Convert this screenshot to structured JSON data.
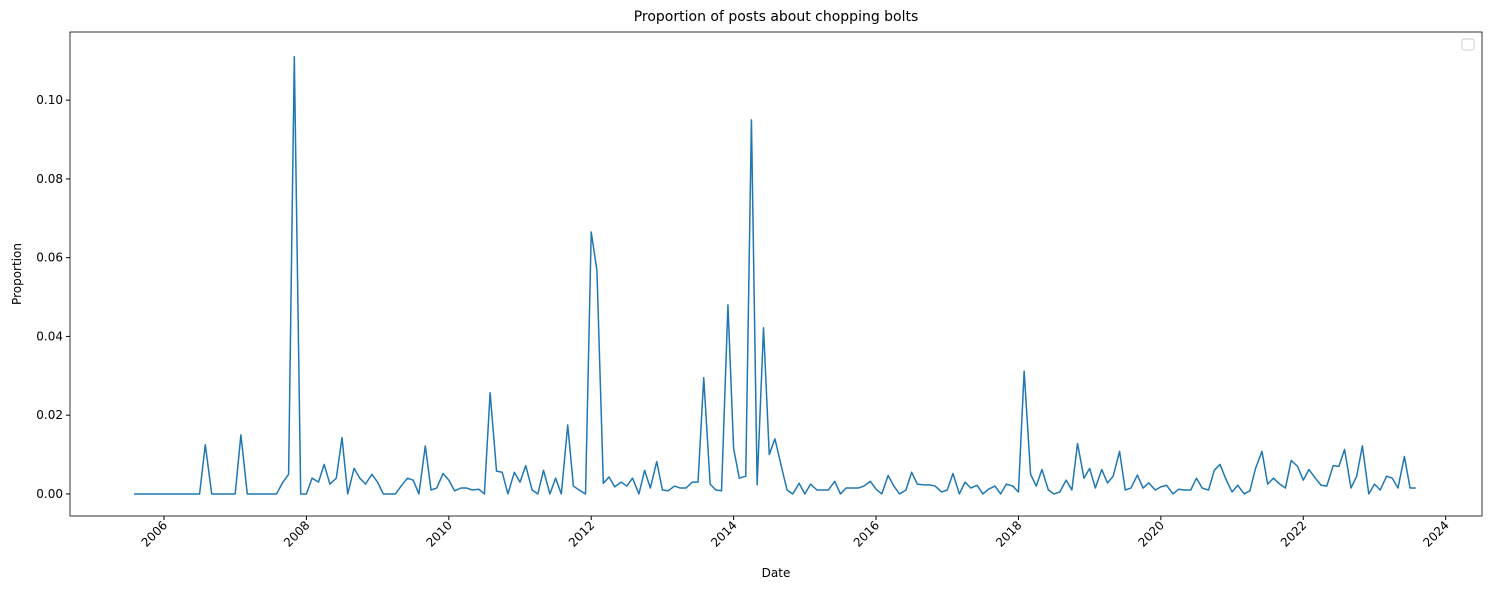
{
  "chart_data": {
    "type": "line",
    "title": "Proportion of posts about chopping bolts",
    "x_label": "Date",
    "y_label": "Proportion",
    "x": [
      2005.58,
      2005.67,
      2005.75,
      2005.83,
      2005.92,
      2006.0,
      2006.08,
      2006.17,
      2006.25,
      2006.33,
      2006.42,
      2006.5,
      2006.58,
      2006.67,
      2006.75,
      2006.83,
      2006.92,
      2007.0,
      2007.08,
      2007.17,
      2007.25,
      2007.33,
      2007.42,
      2007.5,
      2007.58,
      2007.67,
      2007.75,
      2007.83,
      2007.92,
      2008.0,
      2008.08,
      2008.17,
      2008.25,
      2008.33,
      2008.42,
      2008.5,
      2008.58,
      2008.67,
      2008.75,
      2008.83,
      2008.92,
      2009.0,
      2009.08,
      2009.17,
      2009.25,
      2009.33,
      2009.42,
      2009.5,
      2009.58,
      2009.67,
      2009.75,
      2009.83,
      2009.92,
      2010.0,
      2010.08,
      2010.17,
      2010.25,
      2010.33,
      2010.42,
      2010.5,
      2010.58,
      2010.67,
      2010.75,
      2010.83,
      2010.92,
      2011.0,
      2011.08,
      2011.17,
      2011.25,
      2011.33,
      2011.42,
      2011.5,
      2011.58,
      2011.67,
      2011.75,
      2011.83,
      2011.92,
      2012.0,
      2012.08,
      2012.17,
      2012.25,
      2012.33,
      2012.42,
      2012.5,
      2012.58,
      2012.67,
      2012.75,
      2012.83,
      2012.92,
      2013.0,
      2013.08,
      2013.17,
      2013.25,
      2013.33,
      2013.42,
      2013.5,
      2013.58,
      2013.67,
      2013.75,
      2013.83,
      2013.92,
      2014.0,
      2014.08,
      2014.17,
      2014.25,
      2014.33,
      2014.42,
      2014.5,
      2014.58,
      2014.67,
      2014.75,
      2014.83,
      2014.92,
      2015.0,
      2015.08,
      2015.17,
      2015.25,
      2015.33,
      2015.42,
      2015.5,
      2015.58,
      2015.67,
      2015.75,
      2015.83,
      2015.92,
      2016.0,
      2016.08,
      2016.17,
      2016.25,
      2016.33,
      2016.42,
      2016.5,
      2016.58,
      2016.67,
      2016.75,
      2016.83,
      2016.92,
      2017.0,
      2017.08,
      2017.17,
      2017.25,
      2017.33,
      2017.42,
      2017.5,
      2017.58,
      2017.67,
      2017.75,
      2017.83,
      2017.92,
      2018.0,
      2018.08,
      2018.17,
      2018.25,
      2018.33,
      2018.42,
      2018.5,
      2018.58,
      2018.67,
      2018.75,
      2018.83,
      2018.92,
      2019.0,
      2019.08,
      2019.17,
      2019.25,
      2019.33,
      2019.42,
      2019.5,
      2019.58,
      2019.67,
      2019.75,
      2019.83,
      2019.92,
      2020.0,
      2020.08,
      2020.17,
      2020.25,
      2020.33,
      2020.42,
      2020.5,
      2020.58,
      2020.67,
      2020.75,
      2020.83,
      2020.92,
      2021.0,
      2021.08,
      2021.17,
      2021.25,
      2021.33,
      2021.42,
      2021.5,
      2021.58,
      2021.67,
      2021.75,
      2021.83,
      2021.92,
      2022.0,
      2022.08,
      2022.17,
      2022.25,
      2022.33,
      2022.42,
      2022.5,
      2022.58,
      2022.67,
      2022.75,
      2022.83,
      2022.92,
      2023.0,
      2023.08,
      2023.17,
      2023.25,
      2023.33,
      2023.42,
      2023.5,
      2023.58
    ],
    "series": [
      {
        "color": "#1f77b4",
        "values": [
          0,
          0,
          0,
          0,
          0,
          0,
          0,
          0,
          0,
          0,
          0,
          0,
          0.0125,
          0,
          0,
          0,
          0,
          0,
          0.015,
          0,
          0,
          0,
          0,
          0,
          0,
          0.003,
          0.005,
          0.111,
          0,
          0,
          0.004,
          0.003,
          0.0075,
          0.0025,
          0.004,
          0.0143,
          0,
          0.0065,
          0.004,
          0.0025,
          0.005,
          0.003,
          0,
          0,
          0,
          0.002,
          0.004,
          0.0035,
          0,
          0.0122,
          0.001,
          0.0015,
          0.0052,
          0.0035,
          0.0008,
          0.0015,
          0.0015,
          0.001,
          0.0012,
          0,
          0.0257,
          0.0058,
          0.0055,
          0,
          0.0055,
          0.003,
          0.0072,
          0.001,
          0,
          0.006,
          0,
          0.004,
          0,
          0.0175,
          0.002,
          0.001,
          0,
          0.0665,
          0.0568,
          0.0027,
          0.0043,
          0.0018,
          0.003,
          0.002,
          0.004,
          0,
          0.006,
          0.0015,
          0.0082,
          0.001,
          0.0008,
          0.002,
          0.0015,
          0.0015,
          0.003,
          0.003,
          0.0295,
          0.0025,
          0.001,
          0.0008,
          0.048,
          0.0115,
          0.004,
          0.0045,
          0.095,
          0.0023,
          0.0422,
          0.01,
          0.014,
          0.007,
          0.001,
          0,
          0.0027,
          0,
          0.0025,
          0.001,
          0.001,
          0.001,
          0.0032,
          0,
          0.0015,
          0.0015,
          0.0015,
          0.002,
          0.0032,
          0.0012,
          0,
          0.0047,
          0.002,
          0,
          0.001,
          0.0055,
          0.0025,
          0.0023,
          0.0023,
          0.002,
          0.0005,
          0.001,
          0.0052,
          0,
          0.003,
          0.0015,
          0.0022,
          0,
          0.0012,
          0.002,
          0,
          0.0025,
          0.002,
          0.0005,
          0.0312,
          0.005,
          0.002,
          0.0062,
          0.001,
          0,
          0.0005,
          0.0035,
          0.001,
          0.0128,
          0.004,
          0.0065,
          0.0015,
          0.0062,
          0.0028,
          0.0045,
          0.0108,
          0.001,
          0.0015,
          0.0048,
          0.0015,
          0.0028,
          0.001,
          0.0018,
          0.0022,
          0,
          0.0012,
          0.001,
          0.001,
          0.004,
          0.0015,
          0.001,
          0.006,
          0.0075,
          0.0035,
          0.0005,
          0.0022,
          0,
          0.0008,
          0.0065,
          0.0108,
          0.0025,
          0.004,
          0.0025,
          0.0015,
          0.0085,
          0.007,
          0.0035,
          0.0062,
          0.004,
          0.0022,
          0.002,
          0.0072,
          0.007,
          0.0113,
          0.0015,
          0.0045,
          0.0122,
          0,
          0.0025,
          0.001,
          0.0045,
          0.004,
          0.0015,
          0.0095,
          0.0015,
          0.0015
        ]
      }
    ],
    "xlim": [
      2004.68,
      2024.51
    ],
    "xticks": [
      2006,
      2008,
      2010,
      2012,
      2014,
      2016,
      2018,
      2020,
      2022,
      2024
    ],
    "ylim": [
      -0.0056,
      0.1173
    ],
    "yticks": [
      {
        "value": 0,
        "label": "0.00"
      },
      {
        "value": 0.02,
        "label": "0.02"
      },
      {
        "value": 0.04,
        "label": "0.04"
      },
      {
        "value": 0.06,
        "label": "0.06"
      },
      {
        "value": 0.08,
        "label": "0.08"
      },
      {
        "value": 0.1,
        "label": "0.10"
      }
    ],
    "grid": false
  }
}
